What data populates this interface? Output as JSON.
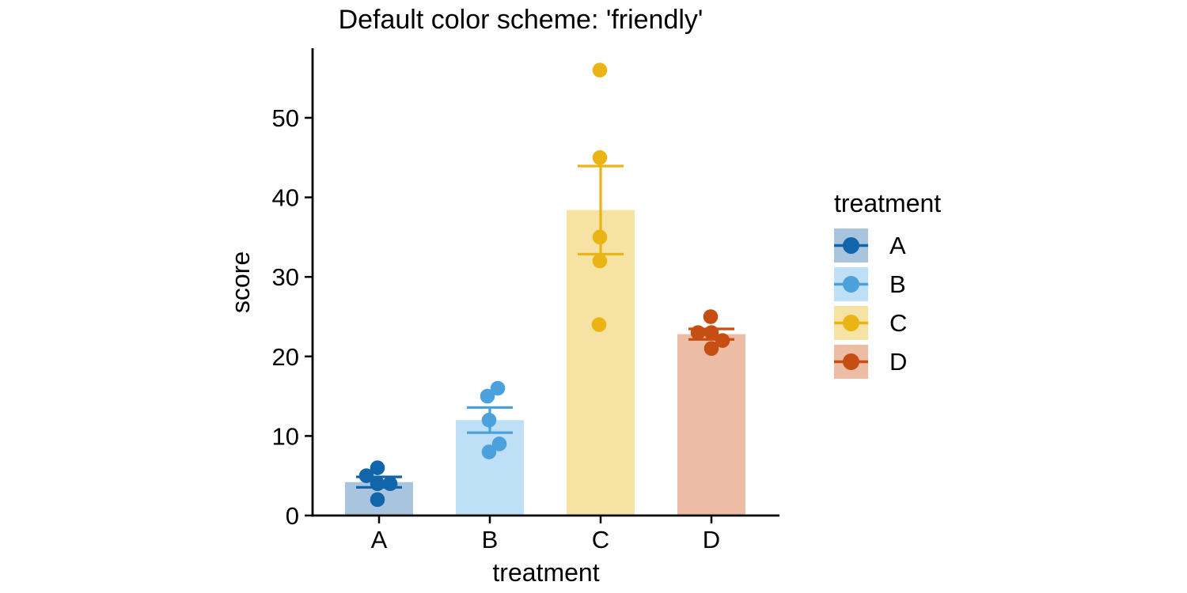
{
  "title": "Default color scheme: 'friendly'",
  "chart_data": {
    "type": "bar",
    "title": "Default color scheme: 'friendly'",
    "xlabel": "treatment",
    "ylabel": "score",
    "categories": [
      "A",
      "B",
      "C",
      "D"
    ],
    "y_ticks": [
      0,
      10,
      20,
      30,
      40,
      50
    ],
    "ylim": [
      0,
      58.7
    ],
    "grid": false,
    "legend_position": "right",
    "legend_title": "treatment",
    "marker": "mean-bar + sem-errorbar + data-points",
    "series": [
      {
        "name": "A",
        "color": "#1065AB",
        "fill": "#A9C4DF",
        "mean": 4.2,
        "sem": 0.66,
        "points": [
          6,
          5,
          4,
          4,
          2
        ],
        "jitter_x": [
          -2,
          -16,
          -2,
          14,
          -2
        ]
      },
      {
        "name": "B",
        "color": "#4BA1DC",
        "fill": "#BEE0F6",
        "mean": 12.0,
        "sem": 1.58,
        "points": [
          16,
          15,
          12,
          9,
          8
        ],
        "jitter_x": [
          10,
          -3,
          -1,
          12,
          -1
        ]
      },
      {
        "name": "C",
        "color": "#E9B414",
        "fill": "#F6E2A2",
        "mean": 38.4,
        "sem": 5.54,
        "points": [
          56,
          45,
          35,
          32,
          24
        ],
        "jitter_x": [
          -1,
          -1,
          -1,
          -1,
          -2
        ]
      },
      {
        "name": "D",
        "color": "#C74E12",
        "fill": "#ECBCA5",
        "mean": 22.8,
        "sem": 0.66,
        "points": [
          25,
          23,
          23,
          22,
          21
        ],
        "jitter_x": [
          -1,
          -17,
          0,
          14,
          0
        ]
      }
    ]
  }
}
